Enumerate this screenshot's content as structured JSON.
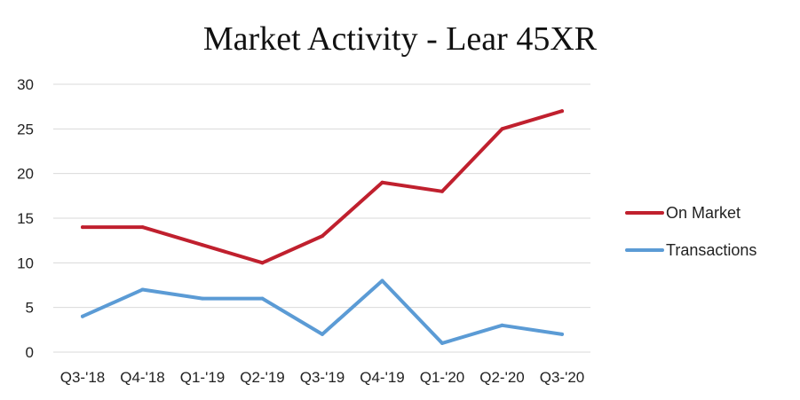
{
  "chart_data": {
    "type": "line",
    "title": "Market Activity - Lear 45XR",
    "categories": [
      "Q3-'18",
      "Q4-'18",
      "Q1-'19",
      "Q2-'19",
      "Q3-'19",
      "Q4-'19",
      "Q1-'20",
      "Q2-'20",
      "Q3-'20"
    ],
    "series": [
      {
        "name": "On Market",
        "color": "#c0202e",
        "values": [
          14,
          14,
          12,
          10,
          13,
          19,
          18,
          25,
          27
        ]
      },
      {
        "name": "Transactions",
        "color": "#5b9bd5",
        "values": [
          4,
          7,
          6,
          6,
          2,
          8,
          1,
          3,
          2
        ]
      }
    ],
    "ylim": [
      0,
      30
    ],
    "yticks": [
      0,
      5,
      10,
      15,
      20,
      25,
      30
    ],
    "grid": true,
    "legend_position": "right",
    "grid_color": "#d9d9d9"
  }
}
